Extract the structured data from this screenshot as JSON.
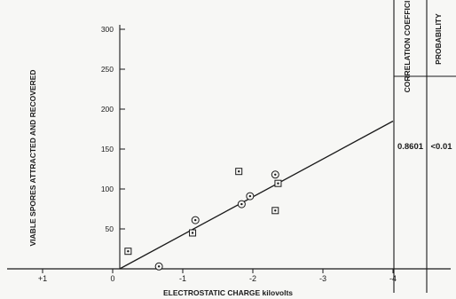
{
  "chart_data": {
    "type": "scatter",
    "xlabel": "ELECTROSTATIC CHARGE kilovolts",
    "ylabel": "VIABLE SPORES ATTRACTED AND RECOVERED",
    "xlim": [
      1.5,
      -4.6
    ],
    "ylim": [
      0,
      350
    ],
    "x_ticks": [
      1,
      0,
      -1,
      -2,
      -3,
      -4
    ],
    "x_tick_labels": [
      "+1",
      "0",
      "-1",
      "-2",
      "-3",
      "-4"
    ],
    "y_ticks": [
      50,
      100,
      150,
      200,
      250,
      300
    ],
    "y_tick_labels": [
      "50",
      "100",
      "150",
      "200",
      "250",
      "300"
    ],
    "grid": false,
    "series": [
      {
        "marker": "square-dot",
        "points": [
          {
            "x": -0.22,
            "y": 22
          },
          {
            "x": -1.14,
            "y": 45
          },
          {
            "x": -1.8,
            "y": 122
          },
          {
            "x": -2.36,
            "y": 107
          },
          {
            "x": -2.32,
            "y": 73
          }
        ]
      },
      {
        "marker": "circle-dot",
        "points": [
          {
            "x": -0.66,
            "y": 3
          },
          {
            "x": -1.18,
            "y": 61
          },
          {
            "x": -1.84,
            "y": 81
          },
          {
            "x": -1.96,
            "y": 91
          },
          {
            "x": -2.32,
            "y": 118
          }
        ]
      }
    ],
    "regression_line": {
      "x": [
        -0.1,
        -4.0
      ],
      "y": [
        0,
        185
      ]
    },
    "table": {
      "columns": [
        "CORRELATION COEFFICIENT",
        "PROBABILITY"
      ],
      "values": [
        "0.8601",
        "<0.01"
      ]
    }
  }
}
